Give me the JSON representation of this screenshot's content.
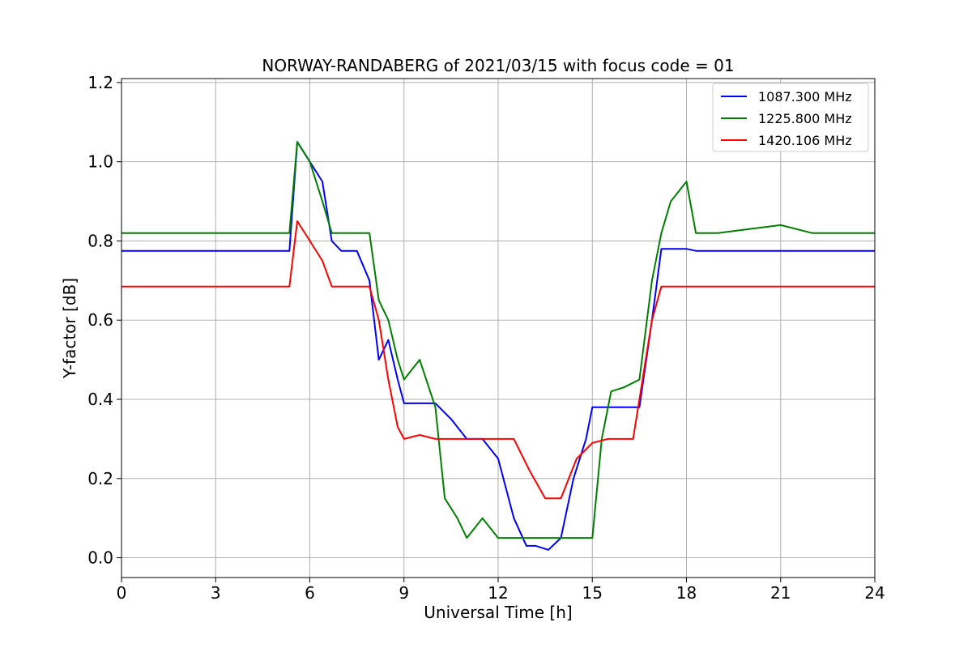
{
  "chart_data": {
    "type": "line",
    "title": "NORWAY-RANDABERG of 2021/03/15 with focus code = 01",
    "xlabel": "Universal Time [h]",
    "ylabel": "Y-factor [dB]",
    "xlim": [
      0,
      24
    ],
    "ylim": [
      -0.05,
      1.21
    ],
    "xticks": [
      0,
      3,
      6,
      9,
      12,
      15,
      18,
      21,
      24
    ],
    "xtick_labels": [
      "0",
      "3",
      "6",
      "9",
      "12",
      "15",
      "18",
      "21",
      "24"
    ],
    "yticks": [
      0.0,
      0.2,
      0.4,
      0.6,
      0.8,
      1.0,
      1.2
    ],
    "ytick_labels": [
      "0.0",
      "0.2",
      "0.4",
      "0.6",
      "0.8",
      "1.0",
      "1.2"
    ],
    "grid": true,
    "legend_position": "top-right",
    "series": [
      {
        "name": "1087.300 MHz",
        "color": "#0000ff",
        "x": [
          0,
          1,
          2,
          3,
          4,
          5,
          5.35,
          5.6,
          6.0,
          6.4,
          6.7,
          7.0,
          7.5,
          7.9,
          8.2,
          8.5,
          8.8,
          9.0,
          9.5,
          10.0,
          10.5,
          11.0,
          11.5,
          12.0,
          12.5,
          12.9,
          13.2,
          13.6,
          14.0,
          14.4,
          14.8,
          15.0,
          15.5,
          16.0,
          16.5,
          16.9,
          17.2,
          17.5,
          18.0,
          18.3,
          19,
          20,
          21,
          22,
          23,
          24
        ],
        "y": [
          0.775,
          0.775,
          0.775,
          0.775,
          0.775,
          0.775,
          0.775,
          1.05,
          1.0,
          0.95,
          0.8,
          0.775,
          0.775,
          0.7,
          0.5,
          0.55,
          0.45,
          0.39,
          0.39,
          0.39,
          0.35,
          0.3,
          0.3,
          0.25,
          0.1,
          0.03,
          0.03,
          0.02,
          0.05,
          0.2,
          0.3,
          0.38,
          0.38,
          0.38,
          0.38,
          0.6,
          0.78,
          0.78,
          0.78,
          0.775,
          0.775,
          0.775,
          0.775,
          0.775,
          0.775,
          0.775
        ]
      },
      {
        "name": "1225.800 MHz",
        "color": "#008000",
        "x": [
          0,
          1,
          2,
          3,
          4,
          5,
          5.35,
          5.6,
          6.0,
          6.4,
          6.7,
          7.0,
          7.5,
          7.9,
          8.2,
          8.5,
          8.8,
          9.0,
          9.5,
          10.0,
          10.3,
          10.7,
          11.0,
          11.5,
          12.0,
          12.5,
          13.0,
          13.5,
          14.0,
          14.5,
          15.0,
          15.3,
          15.6,
          16.0,
          16.5,
          16.9,
          17.2,
          17.5,
          18.0,
          18.3,
          19,
          20,
          21,
          22,
          23,
          24
        ],
        "y": [
          0.82,
          0.82,
          0.82,
          0.82,
          0.82,
          0.82,
          0.82,
          1.05,
          1.0,
          0.9,
          0.82,
          0.82,
          0.82,
          0.82,
          0.65,
          0.6,
          0.5,
          0.45,
          0.5,
          0.38,
          0.15,
          0.1,
          0.05,
          0.1,
          0.05,
          0.05,
          0.05,
          0.05,
          0.05,
          0.05,
          0.05,
          0.3,
          0.42,
          0.43,
          0.45,
          0.7,
          0.82,
          0.9,
          0.95,
          0.82,
          0.82,
          0.83,
          0.84,
          0.82,
          0.82,
          0.82
        ]
      },
      {
        "name": "1420.106 MHz",
        "color": "#ff0000",
        "x": [
          0,
          1,
          2,
          3,
          4,
          5,
          5.35,
          5.6,
          6.0,
          6.4,
          6.7,
          7.0,
          7.5,
          7.9,
          8.2,
          8.5,
          8.8,
          9.0,
          9.5,
          10.0,
          10.5,
          11.0,
          11.5,
          12.0,
          12.5,
          13.0,
          13.5,
          14.0,
          14.5,
          15.0,
          15.5,
          16.0,
          16.3,
          16.6,
          16.9,
          17.2,
          17.5,
          18.0,
          18.3,
          19,
          20,
          21,
          22,
          23,
          24
        ],
        "y": [
          0.685,
          0.685,
          0.685,
          0.685,
          0.685,
          0.685,
          0.685,
          0.85,
          0.8,
          0.75,
          0.685,
          0.685,
          0.685,
          0.685,
          0.6,
          0.45,
          0.33,
          0.3,
          0.31,
          0.3,
          0.3,
          0.3,
          0.3,
          0.3,
          0.3,
          0.22,
          0.15,
          0.15,
          0.25,
          0.29,
          0.3,
          0.3,
          0.3,
          0.45,
          0.6,
          0.685,
          0.685,
          0.685,
          0.685,
          0.685,
          0.685,
          0.685,
          0.685,
          0.685,
          0.685
        ]
      }
    ]
  }
}
